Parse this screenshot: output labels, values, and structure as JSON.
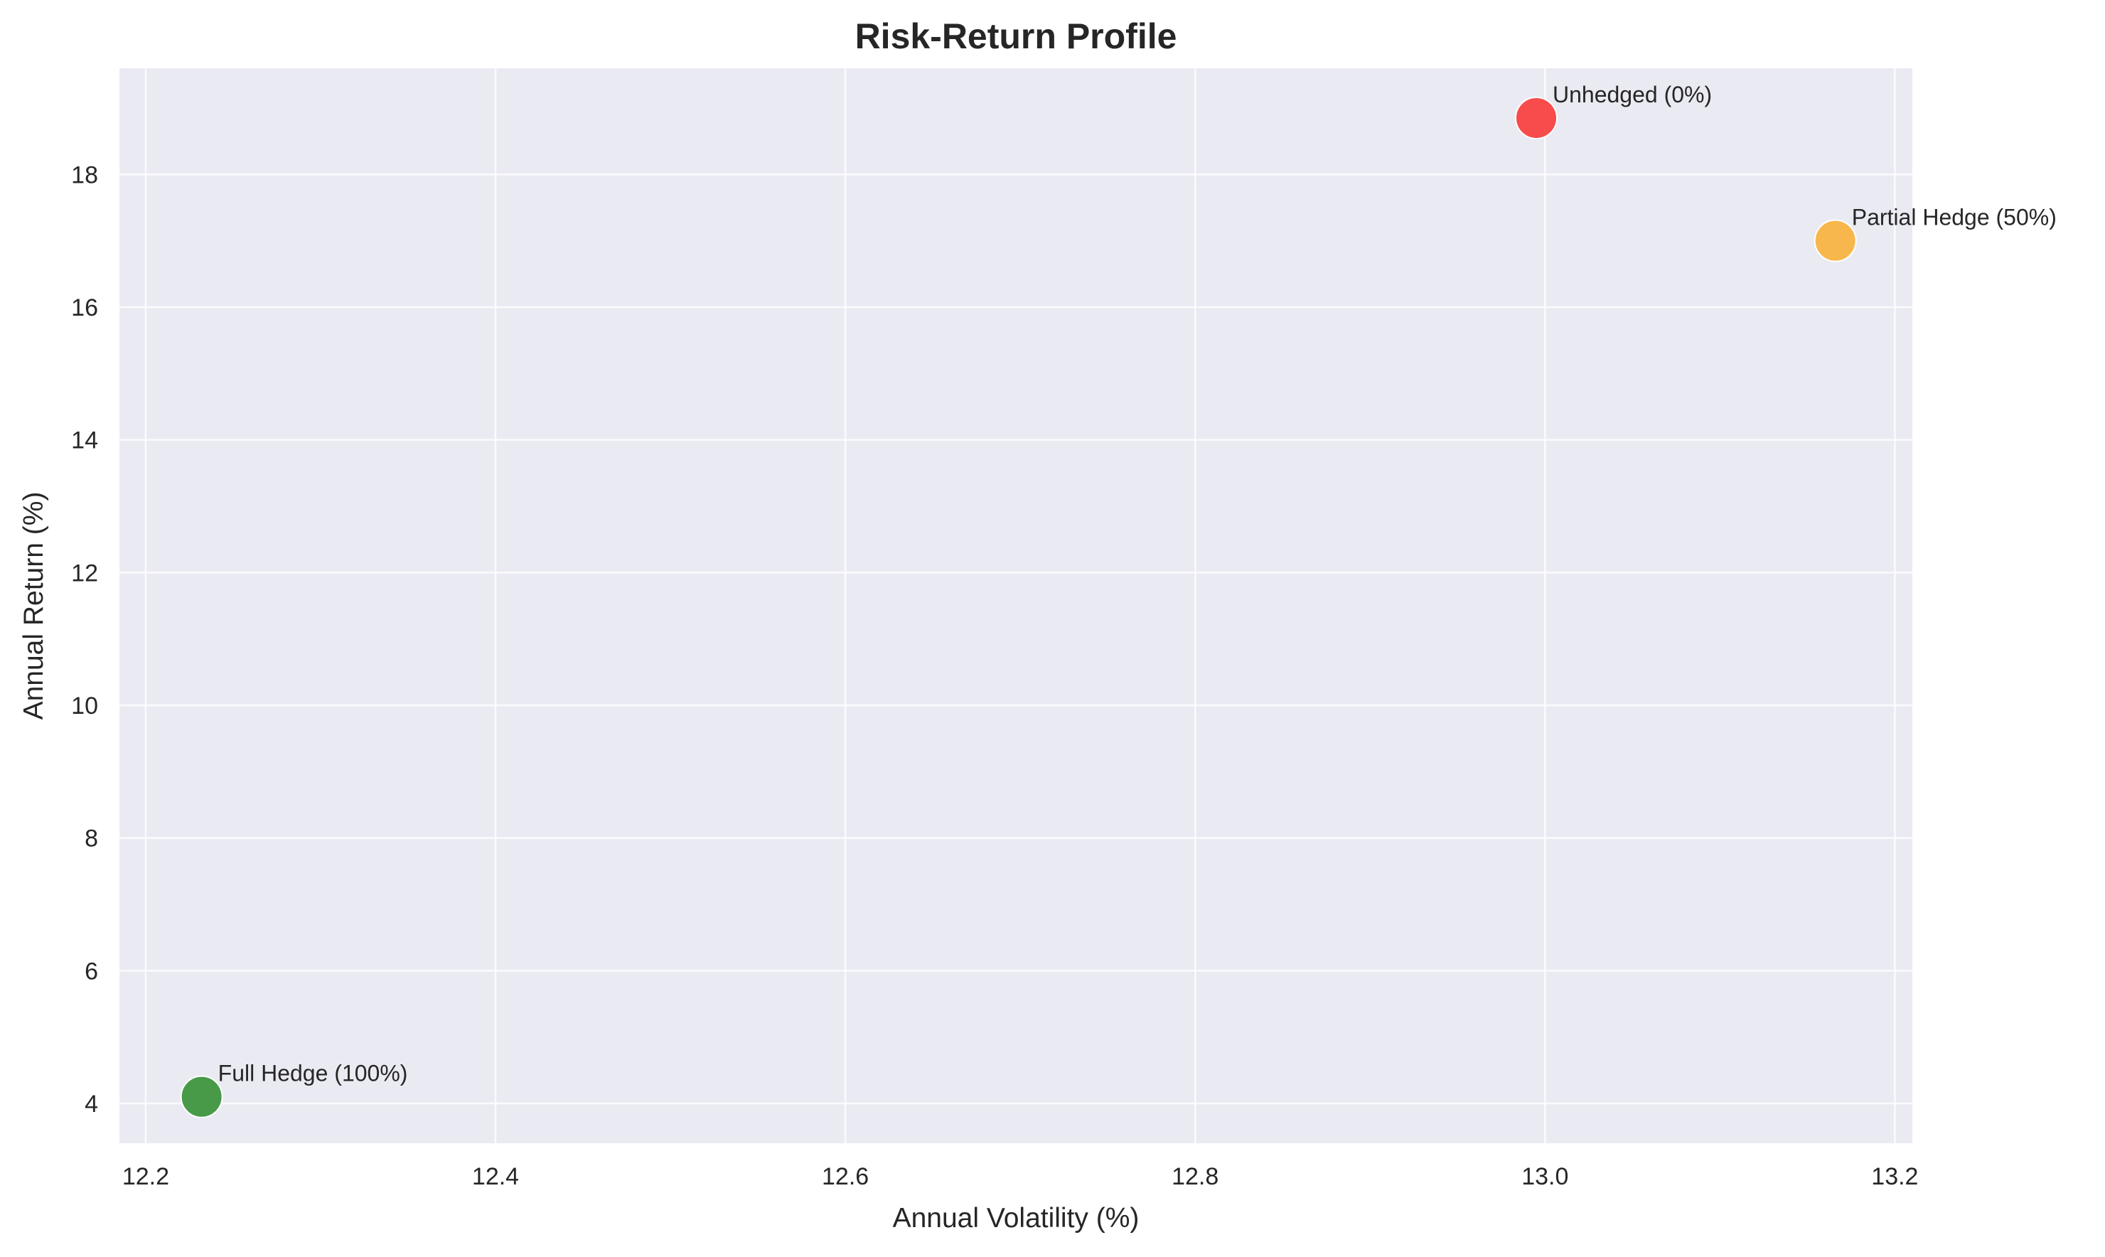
{
  "chart_data": {
    "type": "scatter",
    "title": "Risk-Return Profile",
    "xlabel": "Annual Volatility (%)",
    "ylabel": "Annual Return (%)",
    "xlim": [
      12.185,
      13.21
    ],
    "ylim": [
      3.4,
      19.6
    ],
    "xticks": [
      12.2,
      12.4,
      12.6,
      12.8,
      13.0,
      13.2
    ],
    "xtick_labels": [
      "12.2",
      "12.4",
      "12.6",
      "12.8",
      "13.0",
      "13.2"
    ],
    "yticks": [
      4,
      6,
      8,
      10,
      12,
      14,
      16,
      18
    ],
    "ytick_labels": [
      "4",
      "6",
      "8",
      "10",
      "12",
      "14",
      "16",
      "18"
    ],
    "grid": true,
    "points": [
      {
        "label": "Unhedged (0%)",
        "x": 12.995,
        "y": 18.85,
        "color": "#f94242"
      },
      {
        "label": "Partial Hedge (50%)",
        "x": 13.166,
        "y": 17.0,
        "color": "#f9b442"
      },
      {
        "label": "Full Hedge (100%)",
        "x": 12.232,
        "y": 4.1,
        "color": "#3f963f"
      }
    ]
  },
  "style": {
    "plot_background": "#eaeaf2",
    "grid_color": "#ffffff"
  }
}
